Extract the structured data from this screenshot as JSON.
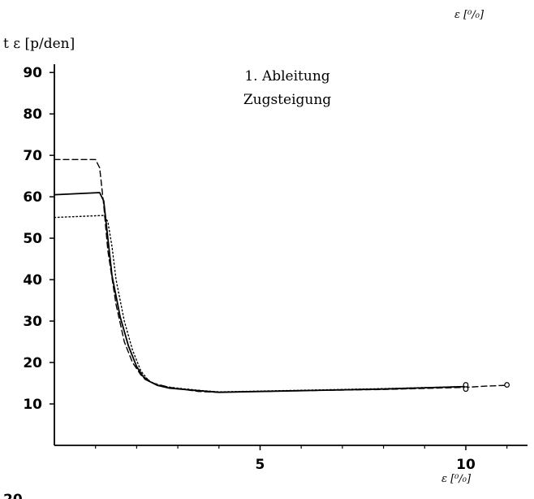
{
  "chart_data": {
    "type": "line",
    "title_lines": [
      "1. Ableitung",
      "Zugsteigung"
    ],
    "ylabel": "t ε  [p/den]",
    "xlabel": "ε [⁰/₀]",
    "top_unit_label": "ε [⁰/₀]",
    "partial_tick_label": "20",
    "xlim": [
      0,
      11.5
    ],
    "ylim": [
      0,
      92
    ],
    "y_ticks": [
      10,
      20,
      30,
      40,
      50,
      60,
      70,
      80,
      90
    ],
    "x_ticks": [
      5,
      10
    ],
    "grid": false,
    "legend": "none",
    "series": [
      {
        "style": "dashed",
        "x": [
          0,
          1.0,
          1.1,
          1.2,
          1.3,
          1.5,
          1.7,
          1.9,
          2.1,
          2.4,
          2.8,
          3.5,
          4.0,
          6.0,
          8.0,
          10.0,
          10.5,
          11.0
        ],
        "y": [
          69,
          69,
          67,
          58,
          47,
          34,
          25,
          20,
          17,
          15,
          14,
          13,
          12.8,
          13.2,
          13.5,
          14.0,
          14.3,
          14.5
        ]
      },
      {
        "style": "solid",
        "x": [
          0,
          1.1,
          1.2,
          1.3,
          1.4,
          1.6,
          1.8,
          2.0,
          2.2,
          2.5,
          2.8,
          3.5,
          4.0,
          6.0,
          8.0,
          10.0
        ],
        "y": [
          60.5,
          61,
          59,
          50,
          41,
          31,
          24,
          19,
          16,
          14.5,
          13.8,
          13.2,
          12.8,
          13.2,
          13.6,
          14.2
        ]
      },
      {
        "style": "dotted",
        "x": [
          0,
          1.2,
          1.3,
          1.4,
          1.5,
          1.7,
          1.9,
          2.1,
          2.3,
          2.6,
          3.0,
          3.5,
          4.0,
          6.0,
          8.0,
          10.0
        ],
        "y": [
          55,
          55.5,
          54,
          48,
          40,
          30,
          23,
          18,
          15.5,
          14.3,
          13.8,
          13.3,
          12.9,
          13.3,
          13.7,
          14.2
        ]
      }
    ],
    "end_markers": [
      {
        "x": 10.0,
        "y": 14.6
      },
      {
        "x": 10.0,
        "y": 13.6
      },
      {
        "x": 11.0,
        "y": 14.6
      }
    ]
  }
}
